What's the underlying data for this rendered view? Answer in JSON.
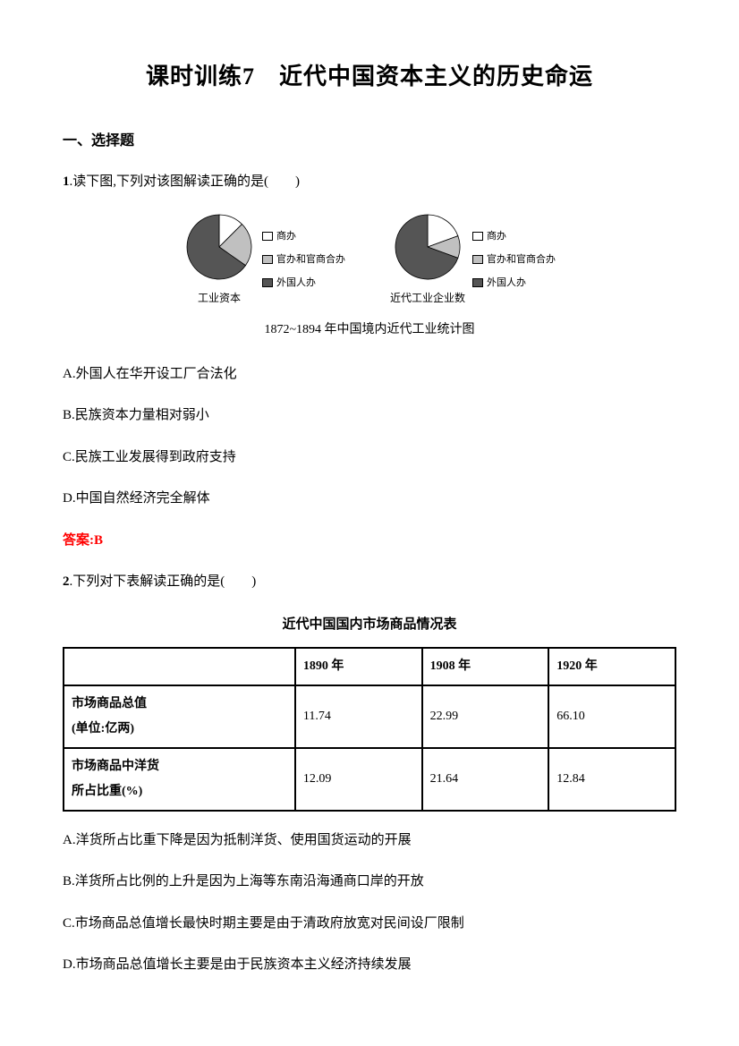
{
  "title": "课时训练7　近代中国资本主义的历史命运",
  "section_heading": "一、选择题",
  "q1": {
    "number": "1",
    "text": ".读下图,下列对该图解读正确的是(　　)",
    "caption": "1872~1894 年中国境内近代工业统计图",
    "chart1": {
      "label": "工业资本",
      "slices": [
        {
          "start": 0,
          "end": 45,
          "fill": "#ffffff"
        },
        {
          "start": 45,
          "end": 125,
          "fill": "#c0c0c0"
        },
        {
          "start": 125,
          "end": 360,
          "fill": "#555555"
        }
      ]
    },
    "chart2": {
      "label": "近代工业企业数",
      "slices": [
        {
          "start": 0,
          "end": 70,
          "fill": "#ffffff"
        },
        {
          "start": 70,
          "end": 110,
          "fill": "#c0c0c0"
        },
        {
          "start": 110,
          "end": 360,
          "fill": "#555555"
        }
      ]
    },
    "legend": [
      {
        "label": "商办",
        "color": "#ffffff"
      },
      {
        "label": "官办和官商合办",
        "color": "#c0c0c0"
      },
      {
        "label": "外国人办",
        "color": "#555555"
      }
    ],
    "options": {
      "A": "A.外国人在华开设工厂合法化",
      "B": "B.民族资本力量相对弱小",
      "C": "C.民族工业发展得到政府支持",
      "D": "D.中国自然经济完全解体"
    },
    "answer_label": "答案:",
    "answer": "B"
  },
  "q2": {
    "number": "2",
    "text": ".下列对下表解读正确的是(　　)",
    "table_title": "近代中国国内市场商品情况表",
    "columns": [
      "",
      "1890 年",
      "1908 年",
      "1920 年"
    ],
    "rows": [
      {
        "header": "市场商品总值(单位:亿两)",
        "cells": [
          "11.74",
          "22.99",
          "66.10"
        ]
      },
      {
        "header": "市场商品中洋货所占比重(%)",
        "cells": [
          "12.09",
          "21.64",
          "12.84"
        ]
      }
    ],
    "options": {
      "A": "A.洋货所占比重下降是因为抵制洋货、使用国货运动的开展",
      "B": "B.洋货所占比例的上升是因为上海等东南沿海通商口岸的开放",
      "C": "C.市场商品总值增长最快时期主要是由于清政府放宽对民间设厂限制",
      "D": "D.市场商品总值增长主要是由于民族资本主义经济持续发展"
    }
  }
}
